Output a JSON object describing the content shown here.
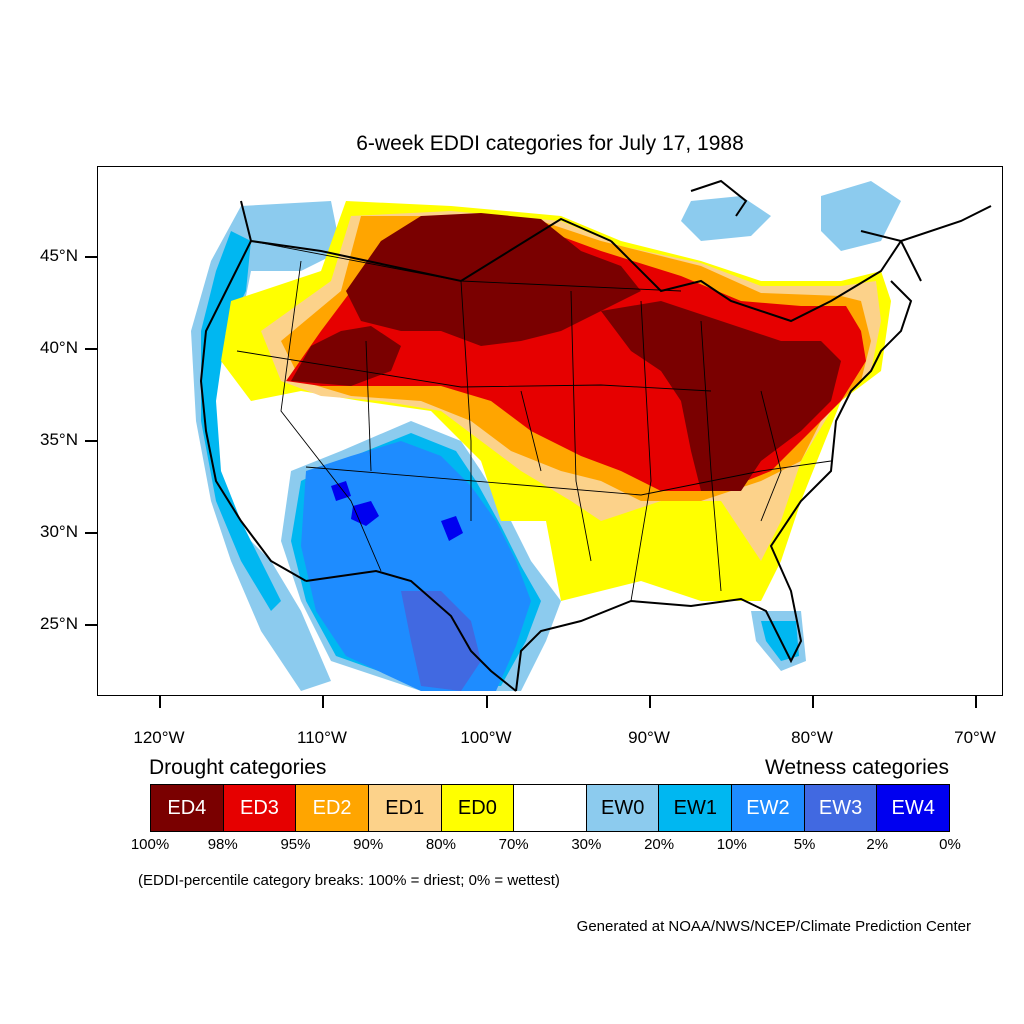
{
  "title": "6-week EDDI categories for July 17, 1988",
  "latitude_labels": [
    "45°N",
    "40°N",
    "35°N",
    "30°N",
    "25°N"
  ],
  "longitude_labels": [
    "120°W",
    "110°W",
    "100°W",
    "90°W",
    "80°W",
    "70°W"
  ],
  "legend": {
    "drought_title": "Drought categories",
    "wetness_title": "Wetness categories",
    "categories": [
      {
        "label": "ED4",
        "color": "#7a0000",
        "text_color": "#ffffff"
      },
      {
        "label": "ED3",
        "color": "#e60000",
        "text_color": "#ffffff"
      },
      {
        "label": "ED2",
        "color": "#ffa500",
        "text_color": "#ffffff"
      },
      {
        "label": "ED1",
        "color": "#fcd28a",
        "text_color": "#000000"
      },
      {
        "label": "ED0",
        "color": "#ffff00",
        "text_color": "#000000"
      },
      {
        "label": "",
        "color": "#ffffff",
        "text_color": "#000000"
      },
      {
        "label": "EW0",
        "color": "#8ccbee",
        "text_color": "#000000"
      },
      {
        "label": "EW1",
        "color": "#00b7f1",
        "text_color": "#000000"
      },
      {
        "label": "EW2",
        "color": "#1e8cff",
        "text_color": "#ffffff"
      },
      {
        "label": "EW3",
        "color": "#4169e1",
        "text_color": "#ffffff"
      },
      {
        "label": "EW4",
        "color": "#0000f0",
        "text_color": "#ffffff"
      }
    ],
    "breaks": [
      "100%",
      "98%",
      "95%",
      "90%",
      "80%",
      "70%",
      "30%",
      "20%",
      "10%",
      "5%",
      "2%",
      "0%"
    ]
  },
  "note": "(EDDI-percentile category breaks: 100% = driest; 0% = wettest)",
  "credit": "Generated at NOAA/NWS/NCEP/Climate Prediction Center"
}
